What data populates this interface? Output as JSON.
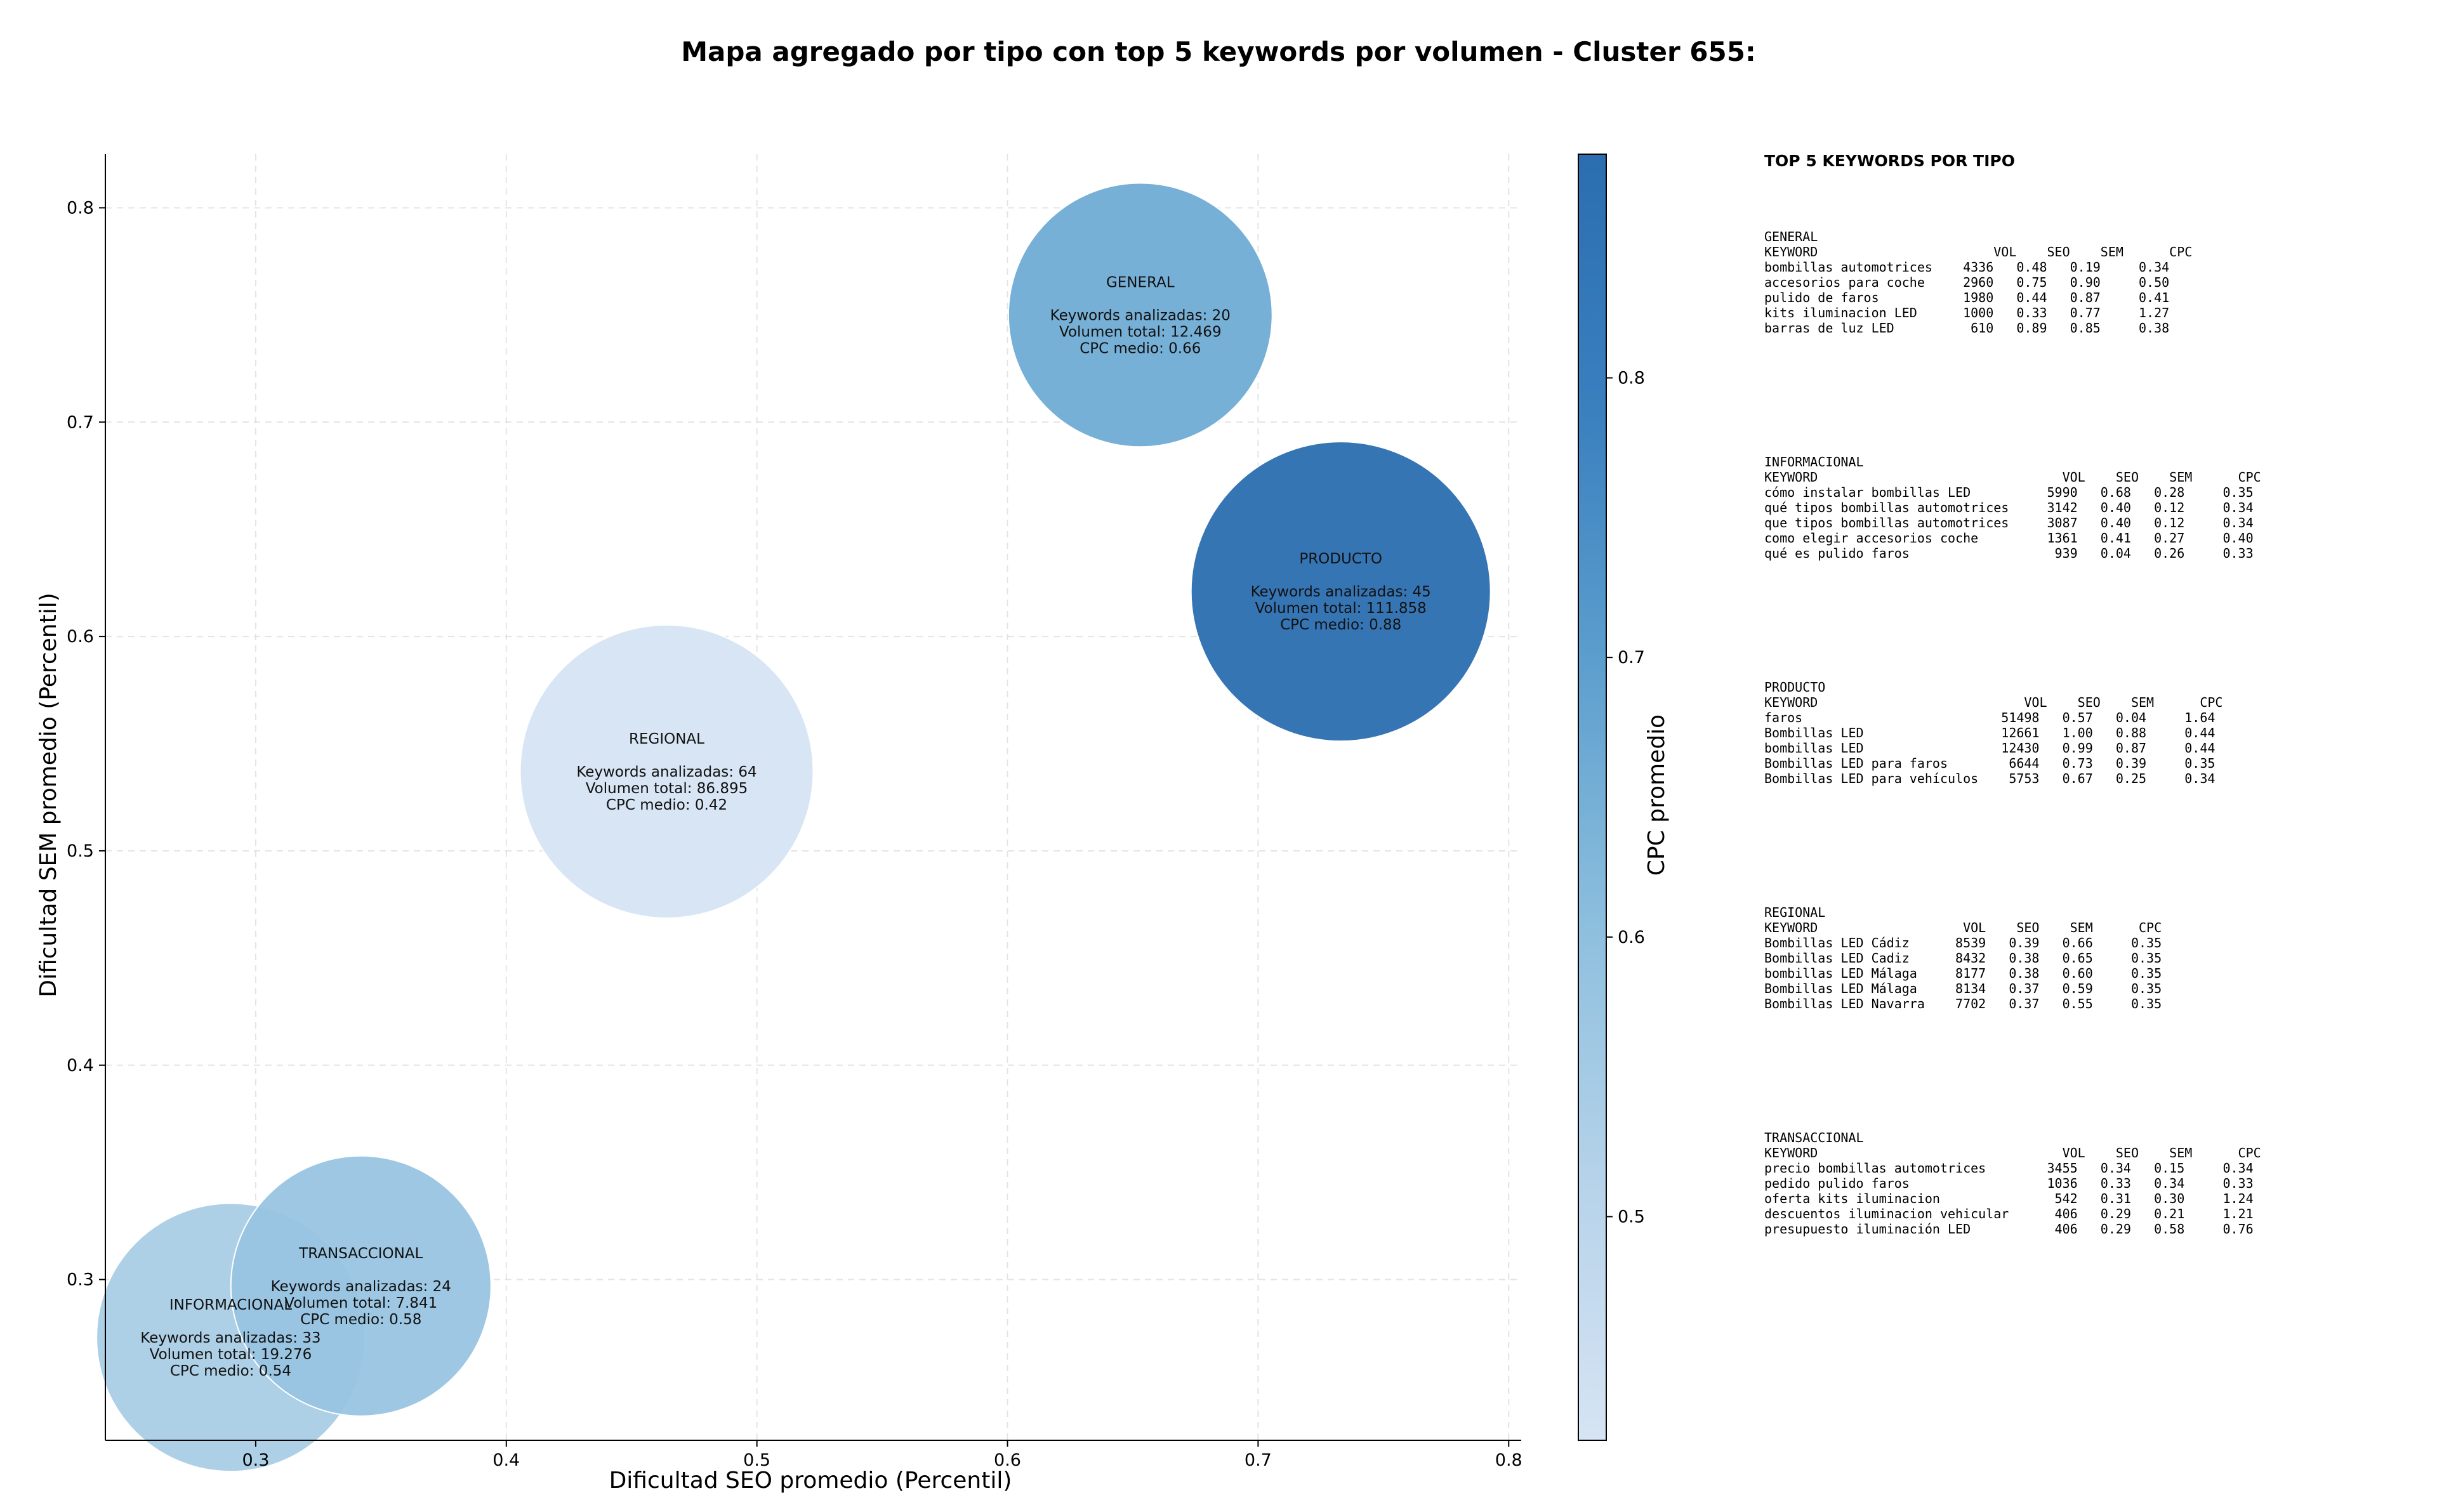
{
  "chart_data": {
    "type": "scatter",
    "title": "Mapa agregado por tipo con top 5 keywords por volumen - Cluster 655:",
    "xlabel": "Dificultad SEO promedio (Percentil)",
    "ylabel": "Dificultad SEM promedio (Percentil)",
    "xlim": [
      0.24,
      0.805
    ],
    "ylim": [
      0.225,
      0.825
    ],
    "x_ticks": [
      0.3,
      0.4,
      0.5,
      0.6,
      0.7,
      0.8
    ],
    "x_tick_labels": [
      "0.3",
      "0.4",
      "0.5",
      "0.6",
      "0.7",
      "0.8"
    ],
    "y_ticks": [
      0.3,
      0.4,
      0.5,
      0.6,
      0.7,
      0.8
    ],
    "y_tick_labels": [
      "0.3",
      "0.4",
      "0.5",
      "0.6",
      "0.7",
      "0.8"
    ],
    "grid": true,
    "colorbar": {
      "label": "CPC promedio",
      "range": [
        0.42,
        0.88
      ],
      "ticks": [
        0.5,
        0.6,
        0.7,
        0.8
      ],
      "tick_labels": [
        "0.5",
        "0.6",
        "0.7",
        "0.8"
      ],
      "colors": [
        "#d6e4f3",
        "#b6d3ea",
        "#8dbfde",
        "#5d9fce",
        "#3a80bf",
        "#2b6eb0"
      ]
    },
    "bubbles": [
      {
        "type": "GENERAL",
        "x": 0.653,
        "y": 0.75,
        "cpc": 0.66,
        "volume": 12469,
        "keywords": 20,
        "label_lines": [
          "GENERAL",
          "",
          "Keywords analizadas: 20",
          "Volumen total: 12.469",
          "CPC medio: 0.66"
        ]
      },
      {
        "type": "PRODUCTO",
        "x": 0.733,
        "y": 0.621,
        "cpc": 0.88,
        "volume": 111858,
        "keywords": 45,
        "label_lines": [
          "PRODUCTO",
          "",
          "Keywords analizadas: 45",
          "Volumen total: 111.858",
          "CPC medio: 0.88"
        ]
      },
      {
        "type": "REGIONAL",
        "x": 0.464,
        "y": 0.537,
        "cpc": 0.42,
        "volume": 86895,
        "keywords": 64,
        "label_lines": [
          "REGIONAL",
          "",
          "Keywords analizadas: 64",
          "Volumen total: 86.895",
          "CPC medio: 0.42"
        ]
      },
      {
        "type": "INFORMACIONAL",
        "x": 0.29,
        "y": 0.273,
        "cpc": 0.54,
        "volume": 19276,
        "keywords": 33,
        "label_lines": [
          "INFORMACIONAL",
          "",
          "Keywords analizadas: 33",
          "Volumen total: 19.276",
          "CPC medio: 0.54"
        ]
      },
      {
        "type": "TRANSACCIONAL",
        "x": 0.342,
        "y": 0.297,
        "cpc": 0.58,
        "volume": 7841,
        "keywords": 24,
        "label_lines": [
          "TRANSACCIONAL",
          "",
          "Keywords analizadas: 24",
          "Volumen total: 7.841",
          "CPC medio: 0.58"
        ]
      }
    ]
  },
  "side_panel": {
    "title": "TOP 5 KEYWORDS POR TIPO",
    "blocks": [
      {
        "lines": [
          "GENERAL",
          "KEYWORD                       VOL    SEO    SEM      CPC",
          "bombillas automotrices    4336   0.48   0.19     0.34",
          "accesorios para coche     2960   0.75   0.90     0.50",
          "pulido de faros           1980   0.44   0.87     0.41",
          "kits iluminacion LED      1000   0.33   0.77     1.27",
          "barras de luz LED          610   0.89   0.85     0.38"
        ]
      },
      {
        "lines": [
          "INFORMACIONAL",
          "KEYWORD                                VOL    SEO    SEM      CPC",
          "cómo instalar bombillas LED          5990   0.68   0.28     0.35",
          "qué tipos bombillas automotrices     3142   0.40   0.12     0.34",
          "que tipos bombillas automotrices     3087   0.40   0.12     0.34",
          "como elegir accesorios coche         1361   0.41   0.27     0.40",
          "qué es pulido faros                   939   0.04   0.26     0.33"
        ]
      },
      {
        "lines": [
          "PRODUCTO",
          "KEYWORD                           VOL    SEO    SEM      CPC",
          "faros                          51498   0.57   0.04     1.64",
          "Bombillas LED                  12661   1.00   0.88     0.44",
          "bombillas LED                  12430   0.99   0.87     0.44",
          "Bombillas LED para faros        6644   0.73   0.39     0.35",
          "Bombillas LED para vehículos    5753   0.67   0.25     0.34"
        ]
      },
      {
        "lines": [
          "REGIONAL",
          "KEYWORD                   VOL    SEO    SEM      CPC",
          "Bombillas LED Cádiz      8539   0.39   0.66     0.35",
          "Bombillas LED Cadiz      8432   0.38   0.65     0.35",
          "bombillas LED Málaga     8177   0.38   0.60     0.35",
          "Bombillas LED Málaga     8134   0.37   0.59     0.35",
          "Bombillas LED Navarra    7702   0.37   0.55     0.35"
        ]
      },
      {
        "lines": [
          "TRANSACCIONAL",
          "KEYWORD                                VOL    SEO    SEM      CPC",
          "precio bombillas automotrices        3455   0.34   0.15     0.34",
          "pedido pulido faros                  1036   0.33   0.34     0.33",
          "oferta kits iluminacion               542   0.31   0.30     1.24",
          "descuentos iluminacion vehicular      406   0.29   0.21     1.21",
          "presupuesto iluminación LED           406   0.29   0.58     0.76"
        ]
      }
    ]
  }
}
